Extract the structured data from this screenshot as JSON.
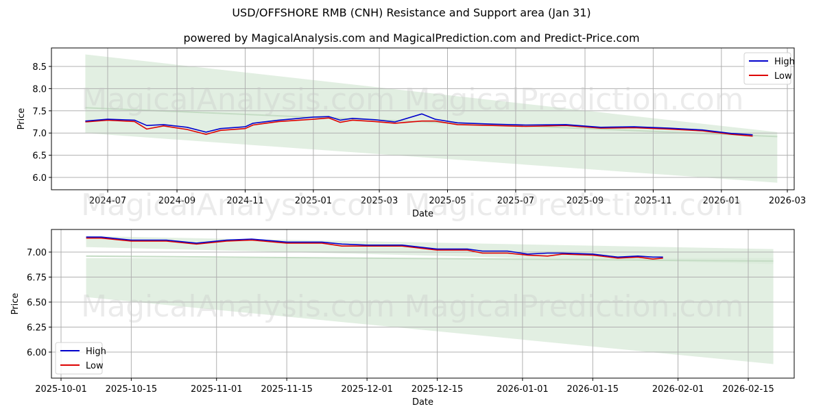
{
  "title": "USD/OFFSHORE RMB (CNH) Resistance and Support area (Jan 31)",
  "subtitle": "powered by MagicalAnalysis.com and MagicalPrediction.com and Predict-Price.com",
  "watermarks": [
    "MagicalAnalysis.com",
    "MagicalPrediction.com"
  ],
  "colors": {
    "high": "#0000cc",
    "low": "#dd0000",
    "band": "#d8ead8",
    "grid": "#b0b0b0"
  },
  "chart_data": [
    {
      "type": "line",
      "title": "Full history",
      "xlabel": "Date",
      "ylabel": "Price",
      "ylim": [
        5.75,
        8.9
      ],
      "grid": true,
      "legend_position": "upper right",
      "x_ticks": [
        "2024-07",
        "2024-09",
        "2024-11",
        "2025-01",
        "2025-03",
        "2025-05",
        "2025-07",
        "2025-09",
        "2025-11",
        "2026-01",
        "2026-03"
      ],
      "y_ticks": [
        "6.0",
        "6.5",
        "7.0",
        "7.5",
        "8.0",
        "8.5"
      ],
      "legend": [
        "High",
        "Low"
      ],
      "x": [
        "2024-06-11",
        "2024-07-01",
        "2024-07-25",
        "2024-08-05",
        "2024-08-20",
        "2024-09-10",
        "2024-09-27",
        "2024-10-10",
        "2024-11-01",
        "2024-11-08",
        "2024-12-01",
        "2025-01-01",
        "2025-01-15",
        "2025-01-25",
        "2025-02-05",
        "2025-02-25",
        "2025-03-15",
        "2025-04-08",
        "2025-04-20",
        "2025-05-10",
        "2025-06-10",
        "2025-07-10",
        "2025-08-15",
        "2025-09-15",
        "2025-10-15",
        "2025-11-15",
        "2025-12-15",
        "2026-01-10",
        "2026-01-29"
      ],
      "series": [
        {
          "name": "High",
          "values": [
            7.27,
            7.31,
            7.29,
            7.17,
            7.19,
            7.13,
            7.02,
            7.1,
            7.14,
            7.22,
            7.29,
            7.36,
            7.37,
            7.29,
            7.33,
            7.3,
            7.25,
            7.43,
            7.31,
            7.23,
            7.2,
            7.18,
            7.19,
            7.13,
            7.14,
            7.11,
            7.07,
            6.99,
            6.96
          ]
        },
        {
          "name": "Low",
          "values": [
            7.25,
            7.29,
            7.26,
            7.09,
            7.16,
            7.08,
            6.97,
            7.06,
            7.1,
            7.18,
            7.26,
            7.31,
            7.34,
            7.24,
            7.29,
            7.26,
            7.22,
            7.27,
            7.27,
            7.19,
            7.17,
            7.15,
            7.17,
            7.11,
            7.12,
            7.09,
            7.05,
            6.97,
            6.93
          ]
        }
      ],
      "resistance_band": {
        "x": [
          "2024-06-11",
          "2026-02-20"
        ],
        "upper": [
          8.77,
          7.02
        ],
        "lower": [
          7.0,
          5.88
        ]
      },
      "mid_line": {
        "x": [
          "2024-06-11",
          "2026-02-20"
        ],
        "values": [
          7.57,
          6.92
        ]
      }
    },
    {
      "type": "line",
      "title": "Zoomed recent",
      "xlabel": "Date",
      "ylabel": "Price",
      "ylim": [
        5.82,
        7.22
      ],
      "grid": true,
      "legend_position": "lower left",
      "x_ticks": [
        "2025-10-01",
        "2025-10-15",
        "2025-11-01",
        "2025-11-15",
        "2025-12-01",
        "2025-12-15",
        "2026-01-01",
        "2026-01-15",
        "2026-02-01",
        "2026-02-15"
      ],
      "y_ticks": [
        "6.00",
        "6.25",
        "6.50",
        "6.75",
        "7.00"
      ],
      "legend": [
        "High",
        "Low"
      ],
      "x": [
        "2025-10-06",
        "2025-10-09",
        "2025-10-15",
        "2025-10-22",
        "2025-10-28",
        "2025-11-03",
        "2025-11-08",
        "2025-11-15",
        "2025-11-22",
        "2025-11-26",
        "2025-12-01",
        "2025-12-08",
        "2025-12-15",
        "2025-12-21",
        "2025-12-24",
        "2025-12-29",
        "2026-01-02",
        "2026-01-06",
        "2026-01-09",
        "2026-01-15",
        "2026-01-20",
        "2026-01-24",
        "2026-01-27",
        "2026-01-29"
      ],
      "series": [
        {
          "name": "High",
          "values": [
            7.15,
            7.15,
            7.12,
            7.12,
            7.09,
            7.12,
            7.13,
            7.1,
            7.1,
            7.08,
            7.07,
            7.07,
            7.03,
            7.03,
            7.01,
            7.01,
            6.98,
            6.99,
            6.99,
            6.98,
            6.95,
            6.96,
            6.95,
            6.95
          ]
        },
        {
          "name": "Low",
          "values": [
            7.14,
            7.14,
            7.11,
            7.11,
            7.08,
            7.11,
            7.12,
            7.09,
            7.09,
            7.06,
            7.06,
            7.06,
            7.02,
            7.02,
            6.99,
            6.99,
            6.97,
            6.96,
            6.98,
            6.97,
            6.94,
            6.95,
            6.93,
            6.94
          ]
        }
      ],
      "resistance_band": {
        "x": [
          "2025-10-06",
          "2026-02-20"
        ],
        "upper": [
          7.16,
          7.03
        ],
        "lower": [
          7.05,
          6.88
        ]
      },
      "support_band": {
        "x": [
          "2025-10-06",
          "2026-02-20"
        ],
        "upper": [
          6.94,
          6.94
        ],
        "lower": [
          6.55,
          5.88
        ]
      },
      "mid_line": {
        "x": [
          "2025-10-06",
          "2026-02-20"
        ],
        "values": [
          6.96,
          6.91
        ]
      }
    }
  ]
}
